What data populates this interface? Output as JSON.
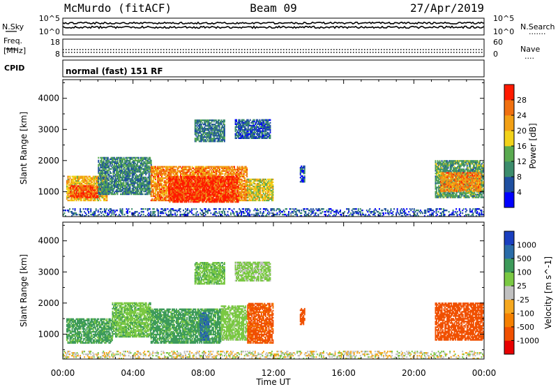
{
  "header": {
    "station": "McMurdo (fitACF)",
    "beam": "Beam 09",
    "date": "27/Apr/2019"
  },
  "noise_panel": {
    "left_label": "N.Sky",
    "left_ticks": [
      "10^5",
      "10^0"
    ],
    "right_ticks": [
      "10^5",
      "10^0"
    ],
    "right_label": "N.Search",
    "right_legend": "......."
  },
  "freq_panel": {
    "left_label_line1": "Freq.",
    "left_label_line2": "[MHz]",
    "left_ticks": [
      "18",
      "8"
    ],
    "right_ticks": [
      "60",
      "0"
    ],
    "right_label": "Nave",
    "right_legend": "...."
  },
  "cpid_panel": {
    "label": "CPID",
    "text": "normal (fast) 151 RF"
  },
  "colors": {
    "power_scale": [
      "#0000ff",
      "#1f4fa0",
      "#3c8c6c",
      "#5aaa50",
      "#f2d21a",
      "#f2a015",
      "#f07010",
      "#ff1a00"
    ],
    "velocity_scale": [
      "#e80000",
      "#f05000",
      "#f58000",
      "#f5a820",
      "#c0c0c0",
      "#7ac843",
      "#3d9a5a",
      "#2a6ca8",
      "#1a3fbf"
    ]
  },
  "chart_data": [
    {
      "type": "heatmap",
      "parameter": "power",
      "ylabel": "Slant Range [km]",
      "xlabel": "",
      "x_ticks": [
        "00:00",
        "04:00",
        "08:00",
        "12:00",
        "16:00",
        "20:00",
        "00:00"
      ],
      "x_hours": [
        0,
        24
      ],
      "ylim": [
        200,
        4600
      ],
      "y_ticks": [
        1000,
        2000,
        3000,
        4000
      ],
      "colorbar_label": "Power [dB]",
      "colorbar_range": [
        0,
        32
      ],
      "colorbar_ticks": [
        4,
        8,
        12,
        16,
        20,
        24,
        28
      ],
      "regions": [
        {
          "t0": 0.2,
          "t1": 2.5,
          "r0": 700,
          "r1": 1500,
          "value": 20
        },
        {
          "t0": 0.4,
          "t1": 2.0,
          "r0": 800,
          "r1": 1200,
          "value": 28
        },
        {
          "t0": 2.0,
          "t1": 5.0,
          "r0": 900,
          "r1": 2100,
          "value": 10
        },
        {
          "t0": 5.0,
          "t1": 10.5,
          "r0": 700,
          "r1": 1800,
          "value": 24
        },
        {
          "t0": 6.0,
          "t1": 10.0,
          "r0": 650,
          "r1": 1500,
          "value": 30
        },
        {
          "t0": 10.5,
          "t1": 12.0,
          "r0": 700,
          "r1": 1400,
          "value": 18
        },
        {
          "t0": 7.5,
          "t1": 9.2,
          "r0": 2600,
          "r1": 3300,
          "value": 9
        },
        {
          "t0": 9.8,
          "t1": 11.8,
          "r0": 2700,
          "r1": 3300,
          "value": 7
        },
        {
          "t0": 13.5,
          "t1": 13.8,
          "r0": 1300,
          "r1": 1800,
          "value": 6
        },
        {
          "t0": 21.2,
          "t1": 23.9,
          "r0": 800,
          "r1": 2000,
          "value": 12
        },
        {
          "t0": 21.5,
          "t1": 23.8,
          "r0": 1000,
          "r1": 1600,
          "value": 24
        },
        {
          "t0": 0,
          "t1": 24,
          "r0": 200,
          "r1": 450,
          "value": 6
        }
      ]
    },
    {
      "type": "heatmap",
      "parameter": "velocity",
      "ylabel": "Slant Range [km]",
      "xlabel": "Time UT",
      "x_ticks": [
        "00:00",
        "04:00",
        "08:00",
        "12:00",
        "16:00",
        "20:00",
        "00:00"
      ],
      "x_hours": [
        0,
        24
      ],
      "ylim": [
        200,
        4600
      ],
      "y_ticks": [
        1000,
        2000,
        3000,
        4000
      ],
      "colorbar_label": "Velocity [m s^-1]",
      "colorbar_ticks": [
        "1000",
        "500",
        "100",
        "25",
        "-25",
        "-100",
        "-500",
        "-1000"
      ],
      "regions": [
        {
          "t0": 0.2,
          "t1": 2.8,
          "r0": 700,
          "r1": 1500,
          "value": 150
        },
        {
          "t0": 2.8,
          "t1": 5.0,
          "r0": 900,
          "r1": 2000,
          "value": 80
        },
        {
          "t0": 5.0,
          "t1": 9.0,
          "r0": 700,
          "r1": 1800,
          "value": 150
        },
        {
          "t0": 7.8,
          "t1": 8.3,
          "r0": 800,
          "r1": 1700,
          "value": 700
        },
        {
          "t0": 9.0,
          "t1": 10.5,
          "r0": 800,
          "r1": 1900,
          "value": 50
        },
        {
          "t0": 10.5,
          "t1": 12.0,
          "r0": 700,
          "r1": 2000,
          "value": -150
        },
        {
          "t0": 7.5,
          "t1": 9.2,
          "r0": 2600,
          "r1": 3300,
          "value": 80
        },
        {
          "t0": 9.8,
          "t1": 11.8,
          "r0": 2700,
          "r1": 3300,
          "value": 40
        },
        {
          "t0": 13.5,
          "t1": 13.8,
          "r0": 1300,
          "r1": 1800,
          "value": -200
        },
        {
          "t0": 21.2,
          "t1": 23.9,
          "r0": 800,
          "r1": 2000,
          "value": -200
        },
        {
          "t0": 0,
          "t1": 24,
          "r0": 200,
          "r1": 450,
          "value": 10
        }
      ]
    }
  ]
}
